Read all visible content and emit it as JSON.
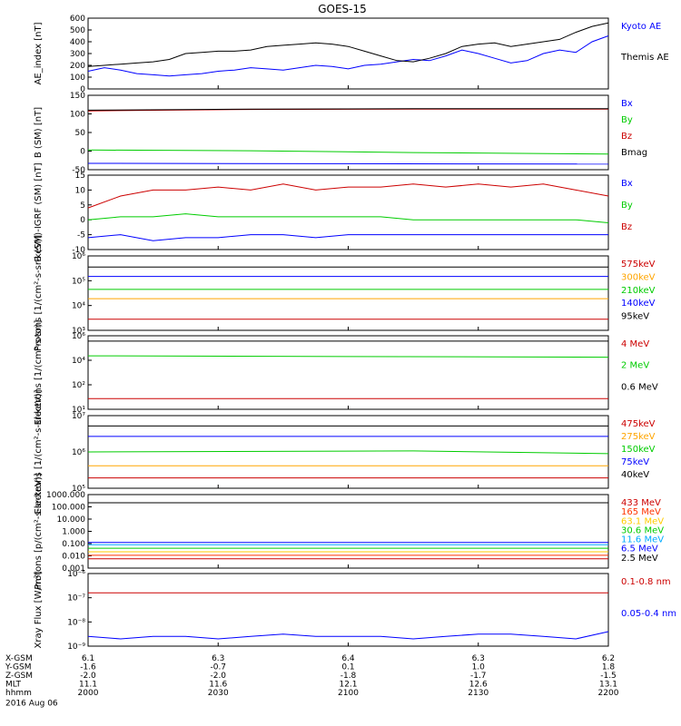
{
  "title": "GOES-15",
  "chart_data": [
    {
      "type": "line",
      "ylabel": "AE_index [nT]",
      "ylim": [
        0,
        600
      ],
      "yticks": [
        "600",
        "500",
        "400",
        "300",
        "200",
        "100",
        "0"
      ],
      "series": [
        {
          "name": "Kyoto AE",
          "color": "#0000ff",
          "x": [
            2000,
            2005,
            2010,
            2015,
            2020,
            2025,
            2030,
            2035,
            2040,
            2045,
            2050,
            2055,
            2060,
            2065,
            2070,
            2075,
            2080,
            2085,
            2090,
            2095,
            2100,
            2105,
            2110,
            2115,
            2120,
            2125,
            2130,
            2135,
            2140,
            2145,
            2150,
            2155,
            2160
          ],
          "values": [
            150,
            180,
            160,
            130,
            120,
            110,
            120,
            130,
            150,
            160,
            180,
            170,
            160,
            180,
            200,
            190,
            170,
            200,
            210,
            230,
            250,
            240,
            280,
            330,
            300,
            260,
            220,
            240,
            300,
            330,
            310,
            400,
            450
          ]
        },
        {
          "name": "Themis AE",
          "color": "#000000",
          "x": [
            2000,
            2005,
            2010,
            2015,
            2020,
            2025,
            2030,
            2035,
            2040,
            2045,
            2050,
            2055,
            2060,
            2065,
            2070,
            2075,
            2080,
            2085,
            2090,
            2095,
            2100,
            2105,
            2110,
            2115,
            2120,
            2125,
            2130,
            2135,
            2140,
            2145,
            2150,
            2155,
            2160
          ],
          "values": [
            190,
            200,
            210,
            220,
            230,
            250,
            300,
            310,
            320,
            320,
            330,
            360,
            370,
            380,
            390,
            380,
            360,
            320,
            280,
            240,
            230,
            260,
            300,
            360,
            380,
            390,
            360,
            380,
            400,
            420,
            480,
            530,
            560
          ]
        }
      ]
    },
    {
      "type": "line",
      "ylabel": "B (SM) [nT]",
      "ylim": [
        -50,
        150
      ],
      "yticks": [
        "150",
        "100",
        "50",
        "0",
        "-50"
      ],
      "series": [
        {
          "name": "Bx",
          "color": "#0000ff",
          "x": [
            2000,
            2160
          ],
          "values": [
            -33,
            -35
          ]
        },
        {
          "name": "By",
          "color": "#00cc00",
          "x": [
            2000,
            2050,
            2100,
            2160
          ],
          "values": [
            3,
            1,
            -4,
            -8
          ]
        },
        {
          "name": "Bz",
          "color": "#cc0000",
          "x": [
            2000,
            2050,
            2100,
            2160
          ],
          "values": [
            108,
            112,
            113,
            113
          ]
        },
        {
          "name": "Bmag",
          "color": "#000000",
          "x": [
            2000,
            2050,
            2100,
            2160
          ],
          "values": [
            110,
            113,
            114,
            114
          ]
        }
      ]
    },
    {
      "type": "line",
      "ylabel": "B (SM)-IGRF (SM) [nT]",
      "ylim": [
        -10,
        15
      ],
      "yticks": [
        "15",
        "10",
        "5",
        "0",
        "-5",
        "-10"
      ],
      "series": [
        {
          "name": "Bx",
          "color": "#0000ff",
          "x": [
            2000,
            2010,
            2020,
            2030,
            2040,
            2050,
            2060,
            2070,
            2080,
            2090,
            2100,
            2110,
            2120,
            2130,
            2140,
            2150,
            2160
          ],
          "values": [
            -6,
            -5,
            -7,
            -6,
            -6,
            -5,
            -5,
            -6,
            -5,
            -5,
            -5,
            -5,
            -5,
            -5,
            -5,
            -5,
            -5
          ]
        },
        {
          "name": "By",
          "color": "#00cc00",
          "x": [
            2000,
            2010,
            2020,
            2030,
            2040,
            2050,
            2060,
            2070,
            2080,
            2090,
            2100,
            2110,
            2120,
            2130,
            2140,
            2150,
            2160
          ],
          "values": [
            0,
            1,
            1,
            2,
            1,
            1,
            1,
            1,
            1,
            1,
            0,
            0,
            0,
            0,
            0,
            0,
            -1
          ]
        },
        {
          "name": "Bz",
          "color": "#cc0000",
          "x": [
            2000,
            2010,
            2020,
            2030,
            2040,
            2050,
            2060,
            2070,
            2080,
            2090,
            2100,
            2110,
            2120,
            2130,
            2140,
            2150,
            2160
          ],
          "values": [
            4,
            8,
            10,
            10,
            11,
            10,
            12,
            10,
            11,
            11,
            12,
            11,
            12,
            11,
            12,
            10,
            8
          ]
        }
      ]
    },
    {
      "type": "line",
      "ylabel": "Protons [1/(cm²-s-sr-keV)]",
      "ylim": [
        2,
        6
      ],
      "log": true,
      "yticks": [
        "10⁶",
        "10⁵",
        "10⁴",
        "10³"
      ],
      "series": [
        {
          "name": "575keV",
          "color": "#cc0000",
          "x": [
            2000,
            2160
          ],
          "values": [
            2.6,
            2.6
          ]
        },
        {
          "name": "300keV",
          "color": "#ffa500",
          "x": [
            2000,
            2160
          ],
          "values": [
            3.7,
            3.7
          ]
        },
        {
          "name": "210keV",
          "color": "#00cc00",
          "x": [
            2000,
            2160
          ],
          "values": [
            4.2,
            4.2
          ]
        },
        {
          "name": "140keV",
          "color": "#0000ff",
          "x": [
            2000,
            2160
          ],
          "values": [
            4.9,
            4.9
          ]
        },
        {
          "name": "95keV",
          "color": "#000000",
          "x": [
            2000,
            2160
          ],
          "values": [
            5.4,
            5.4
          ]
        }
      ]
    },
    {
      "type": "line",
      "ylabel": "Electrons [1/(cm²-s-sr)]",
      "ylim": [
        0.5,
        6
      ],
      "log": true,
      "yticks": [
        "10⁶",
        "10⁴",
        "10²",
        "10¹"
      ],
      "series": [
        {
          "name": "4 MeV",
          "color": "#cc0000",
          "x": [
            2000,
            2160
          ],
          "values": [
            1.3,
            1.3
          ]
        },
        {
          "name": "2 MeV",
          "color": "#00cc00",
          "x": [
            2000,
            2160
          ],
          "values": [
            4.5,
            4.4
          ]
        },
        {
          "name": "0.6 MeV",
          "color": "#000000",
          "x": [
            2000,
            2160
          ],
          "values": [
            5.6,
            5.6
          ]
        }
      ]
    },
    {
      "type": "line",
      "ylabel": "Electrons [1/(cm²-s-sr-keV)]",
      "ylim": [
        4.9,
        7
      ],
      "log": true,
      "yticks": [
        "10⁷",
        "10⁶",
        "10⁵"
      ],
      "series": [
        {
          "name": "475keV",
          "color": "#cc0000",
          "x": [
            2000,
            2160
          ],
          "values": [
            5.2,
            5.2
          ]
        },
        {
          "name": "275keV",
          "color": "#ffa500",
          "x": [
            2000,
            2160
          ],
          "values": [
            5.55,
            5.55
          ]
        },
        {
          "name": "150keV",
          "color": "#00cc00",
          "x": [
            2000,
            2100,
            2160
          ],
          "values": [
            5.95,
            5.98,
            5.9
          ]
        },
        {
          "name": "75keV",
          "color": "#0000ff",
          "x": [
            2000,
            2160
          ],
          "values": [
            6.4,
            6.4
          ]
        },
        {
          "name": "40keV",
          "color": "#000000",
          "x": [
            2000,
            2160
          ],
          "values": [
            6.7,
            6.7
          ]
        }
      ]
    },
    {
      "type": "line",
      "ylabel": "Protons [p/(cm²-s-sr-keV)]",
      "ylim": [
        -3.3,
        3
      ],
      "log": true,
      "yticks": [
        "1000.000",
        "100.000",
        "10.000",
        "1.000",
        "0.100",
        "0.010",
        "0.001"
      ],
      "series": [
        {
          "name": "433 MeV",
          "color": "#cc0000",
          "x": [
            2000,
            2160
          ],
          "values": [
            -2.5,
            -2.5
          ]
        },
        {
          "name": "165 MeV",
          "color": "#ff3300",
          "x": [
            2000,
            2160
          ],
          "values": [
            -2.2,
            -2.2
          ]
        },
        {
          "name": "63.1 MeV",
          "color": "#ffcc00",
          "x": [
            2000,
            2160
          ],
          "values": [
            -1.9,
            -1.9
          ]
        },
        {
          "name": "30.6 MeV",
          "color": "#00cc00",
          "x": [
            2000,
            2160
          ],
          "values": [
            -1.6,
            -1.6
          ]
        },
        {
          "name": "11.6 MeV",
          "color": "#00aaff",
          "x": [
            2000,
            2160
          ],
          "values": [
            -1.3,
            -1.3
          ]
        },
        {
          "name": "6.5 MeV",
          "color": "#0000ff",
          "x": [
            2000,
            2160
          ],
          "values": [
            -1.1,
            -1.1
          ]
        },
        {
          "name": "2.5 MeV",
          "color": "#000000",
          "x": [
            2000,
            2160
          ],
          "values": [
            2.3,
            2.3
          ]
        }
      ]
    },
    {
      "type": "line",
      "ylabel": "Xray Flux [W/m²]",
      "ylim": [
        -9,
        -6
      ],
      "log": true,
      "yticks": [
        "10⁻⁶",
        "10⁻⁷",
        "10⁻⁸",
        "10⁻⁹"
      ],
      "series": [
        {
          "name": "0.1-0.8 nm",
          "color": "#cc0000",
          "x": [
            2000,
            2160
          ],
          "values": [
            -6.8,
            -6.8
          ]
        },
        {
          "name": "0.05-0.4 nm",
          "color": "#0000ff",
          "x": [
            2000,
            2010,
            2020,
            2030,
            2040,
            2050,
            2060,
            2070,
            2080,
            2090,
            2100,
            2110,
            2120,
            2130,
            2140,
            2150,
            2160
          ],
          "values": [
            -8.6,
            -8.7,
            -8.6,
            -8.6,
            -8.7,
            -8.6,
            -8.5,
            -8.6,
            -8.6,
            -8.6,
            -8.7,
            -8.6,
            -8.5,
            -8.5,
            -8.6,
            -8.7,
            -8.4
          ]
        }
      ]
    }
  ],
  "xaxis": {
    "rows": [
      {
        "label": "X-GSM",
        "values": [
          "6.1",
          "6.3",
          "6.4",
          "6.3",
          "6.2"
        ]
      },
      {
        "label": "Y-GSM",
        "values": [
          "-1.6",
          "-0.7",
          "0.1",
          "1.0",
          "1.8"
        ]
      },
      {
        "label": "Z-GSM",
        "values": [
          "-2.0",
          "-2.0",
          "-1.8",
          "-1.7",
          "-1.5"
        ]
      },
      {
        "label": "MLT",
        "values": [
          "11.1",
          "11.6",
          "12.1",
          "12.6",
          "13.1"
        ]
      },
      {
        "label": "hhmm",
        "values": [
          "2000",
          "2030",
          "2100",
          "2130",
          "2200"
        ]
      }
    ],
    "date": "2016 Aug 06"
  }
}
